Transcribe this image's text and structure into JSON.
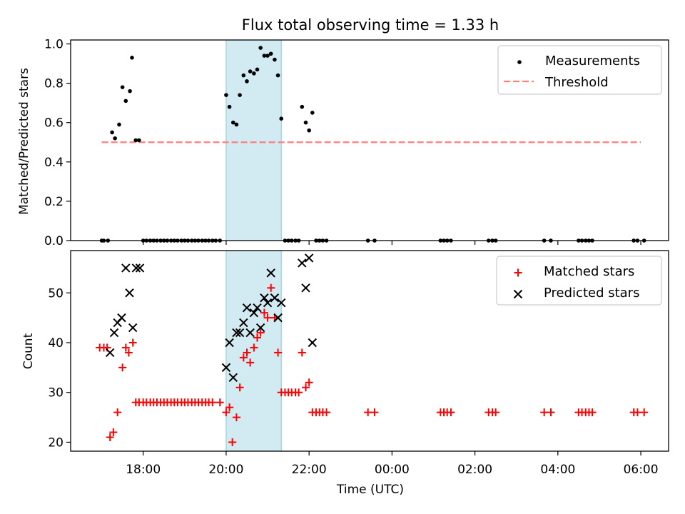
{
  "chart_data": [
    {
      "type": "scatter",
      "title": "Flux total observing time = 1.33 h",
      "xlabel": "",
      "ylabel": "Matched/Predicted stars",
      "ylim": [
        0,
        1.02
      ],
      "yticks": [
        "0.0",
        "0.2",
        "0.4",
        "0.6",
        "0.8",
        "1.0"
      ],
      "ytick_values": [
        0,
        0.2,
        0.4,
        0.6,
        0.8,
        1.0
      ],
      "shaded_region": {
        "x_start": 20.0,
        "x_end": 21.33,
        "color": "#add8e6"
      },
      "legend": {
        "placement": "top-right",
        "entries": [
          "Measurements",
          "Threshold"
        ]
      },
      "threshold": {
        "name": "Threshold",
        "y": 0.5,
        "x": [
          17.0,
          30.0
        ],
        "color": "#ff7f7f",
        "style": "dashed"
      },
      "series": [
        {
          "name": "Measurements",
          "marker": "dot",
          "color": "#000000",
          "points": [
            [
              17.0,
              0
            ],
            [
              17.05,
              0
            ],
            [
              17.15,
              0
            ],
            [
              17.25,
              0.55
            ],
            [
              17.32,
              0.52
            ],
            [
              17.42,
              0.59
            ],
            [
              17.5,
              0.78
            ],
            [
              17.58,
              0.71
            ],
            [
              17.68,
              0.76
            ],
            [
              17.73,
              0.93
            ],
            [
              17.82,
              0.51
            ],
            [
              17.9,
              0.51
            ],
            [
              18.0,
              0
            ],
            [
              18.08,
              0
            ],
            [
              18.17,
              0
            ],
            [
              18.25,
              0
            ],
            [
              18.33,
              0
            ],
            [
              18.42,
              0
            ],
            [
              18.5,
              0
            ],
            [
              18.58,
              0
            ],
            [
              18.67,
              0
            ],
            [
              18.75,
              0
            ],
            [
              18.83,
              0
            ],
            [
              18.92,
              0
            ],
            [
              19.0,
              0
            ],
            [
              19.08,
              0
            ],
            [
              19.17,
              0
            ],
            [
              19.25,
              0
            ],
            [
              19.33,
              0
            ],
            [
              19.42,
              0
            ],
            [
              19.5,
              0
            ],
            [
              19.58,
              0
            ],
            [
              19.67,
              0
            ],
            [
              19.75,
              0
            ],
            [
              19.85,
              0
            ],
            [
              20.0,
              0.74
            ],
            [
              20.08,
              0.68
            ],
            [
              20.17,
              0.6
            ],
            [
              20.25,
              0.59
            ],
            [
              20.33,
              0.74
            ],
            [
              20.42,
              0.84
            ],
            [
              20.5,
              0.81
            ],
            [
              20.58,
              0.86
            ],
            [
              20.67,
              0.85
            ],
            [
              20.75,
              0.87
            ],
            [
              20.83,
              0.98
            ],
            [
              20.92,
              0.94
            ],
            [
              21.0,
              0.94
            ],
            [
              21.08,
              0.95
            ],
            [
              21.17,
              0.92
            ],
            [
              21.25,
              0.84
            ],
            [
              21.33,
              0.62
            ],
            [
              21.42,
              0
            ],
            [
              21.5,
              0
            ],
            [
              21.58,
              0
            ],
            [
              21.67,
              0
            ],
            [
              21.75,
              0
            ],
            [
              21.83,
              0.68
            ],
            [
              21.92,
              0.6
            ],
            [
              22.0,
              0.56
            ],
            [
              22.08,
              0.65
            ],
            [
              22.17,
              0
            ],
            [
              22.25,
              0
            ],
            [
              22.33,
              0
            ],
            [
              22.42,
              0
            ],
            [
              23.42,
              0
            ],
            [
              23.58,
              0
            ],
            [
              25.17,
              0
            ],
            [
              25.25,
              0
            ],
            [
              25.33,
              0
            ],
            [
              25.42,
              0
            ],
            [
              26.33,
              0
            ],
            [
              26.42,
              0
            ],
            [
              26.5,
              0
            ],
            [
              27.67,
              0
            ],
            [
              27.83,
              0
            ],
            [
              28.5,
              0
            ],
            [
              28.58,
              0
            ],
            [
              28.67,
              0
            ],
            [
              28.75,
              0
            ],
            [
              28.83,
              0
            ],
            [
              29.83,
              0
            ],
            [
              29.92,
              0
            ],
            [
              30.08,
              0
            ]
          ]
        }
      ]
    },
    {
      "type": "scatter",
      "title": "",
      "xlabel": "Time (UTC)",
      "ylabel": "Count",
      "xlim": [
        16.25,
        30.67
      ],
      "ylim": [
        18.2,
        58.5
      ],
      "xticks": [
        "18:00",
        "20:00",
        "22:00",
        "00:00",
        "02:00",
        "04:00",
        "06:00"
      ],
      "xtick_values": [
        18,
        20,
        22,
        24,
        26,
        28,
        30
      ],
      "yticks": [
        "20",
        "30",
        "40",
        "50"
      ],
      "ytick_values": [
        20,
        30,
        40,
        50
      ],
      "shaded_region": {
        "x_start": 20.0,
        "x_end": 21.33,
        "color": "#add8e6"
      },
      "legend": {
        "placement": "top-right",
        "entries": [
          "Matched stars",
          "Predicted stars"
        ]
      },
      "series": [
        {
          "name": "Matched stars",
          "marker": "plus",
          "color": "#ff0000",
          "points": [
            [
              16.95,
              39
            ],
            [
              17.05,
              39
            ],
            [
              17.13,
              39
            ],
            [
              17.2,
              21
            ],
            [
              17.28,
              22
            ],
            [
              17.38,
              26
            ],
            [
              17.5,
              35
            ],
            [
              17.58,
              39
            ],
            [
              17.65,
              38
            ],
            [
              17.75,
              40
            ],
            [
              17.82,
              28
            ],
            [
              17.9,
              28
            ],
            [
              18.0,
              28
            ],
            [
              18.08,
              28
            ],
            [
              18.17,
              28
            ],
            [
              18.25,
              28
            ],
            [
              18.33,
              28
            ],
            [
              18.42,
              28
            ],
            [
              18.5,
              28
            ],
            [
              18.58,
              28
            ],
            [
              18.67,
              28
            ],
            [
              18.75,
              28
            ],
            [
              18.83,
              28
            ],
            [
              18.92,
              28
            ],
            [
              19.0,
              28
            ],
            [
              19.08,
              28
            ],
            [
              19.17,
              28
            ],
            [
              19.25,
              28
            ],
            [
              19.33,
              28
            ],
            [
              19.42,
              28
            ],
            [
              19.5,
              28
            ],
            [
              19.58,
              28
            ],
            [
              19.67,
              28
            ],
            [
              19.85,
              28
            ],
            [
              20.0,
              26
            ],
            [
              20.08,
              27
            ],
            [
              20.15,
              20
            ],
            [
              20.25,
              25
            ],
            [
              20.33,
              31
            ],
            [
              20.42,
              37
            ],
            [
              20.5,
              38
            ],
            [
              20.58,
              36
            ],
            [
              20.67,
              39
            ],
            [
              20.75,
              41
            ],
            [
              20.83,
              42
            ],
            [
              20.92,
              46
            ],
            [
              21.0,
              45
            ],
            [
              21.08,
              51
            ],
            [
              21.17,
              45
            ],
            [
              21.25,
              38
            ],
            [
              21.33,
              30
            ],
            [
              21.42,
              30
            ],
            [
              21.5,
              30
            ],
            [
              21.58,
              30
            ],
            [
              21.67,
              30
            ],
            [
              21.75,
              30
            ],
            [
              21.83,
              38
            ],
            [
              21.92,
              31
            ],
            [
              22.0,
              32
            ],
            [
              22.08,
              26
            ],
            [
              22.17,
              26
            ],
            [
              22.25,
              26
            ],
            [
              22.33,
              26
            ],
            [
              22.42,
              26
            ],
            [
              23.42,
              26
            ],
            [
              23.58,
              26
            ],
            [
              25.17,
              26
            ],
            [
              25.25,
              26
            ],
            [
              25.33,
              26
            ],
            [
              25.42,
              26
            ],
            [
              26.33,
              26
            ],
            [
              26.42,
              26
            ],
            [
              26.5,
              26
            ],
            [
              27.67,
              26
            ],
            [
              27.83,
              26
            ],
            [
              28.5,
              26
            ],
            [
              28.58,
              26
            ],
            [
              28.67,
              26
            ],
            [
              28.75,
              26
            ],
            [
              28.83,
              26
            ],
            [
              29.83,
              26
            ],
            [
              29.92,
              26
            ],
            [
              30.08,
              26
            ]
          ]
        },
        {
          "name": "Predicted stars",
          "marker": "x",
          "color": "#000000",
          "points": [
            [
              17.2,
              38
            ],
            [
              17.3,
              42
            ],
            [
              17.38,
              44
            ],
            [
              17.48,
              45
            ],
            [
              17.58,
              55
            ],
            [
              17.67,
              50
            ],
            [
              17.75,
              43
            ],
            [
              17.83,
              55
            ],
            [
              17.92,
              55
            ],
            [
              20.0,
              35
            ],
            [
              20.08,
              40
            ],
            [
              20.17,
              33
            ],
            [
              20.25,
              42
            ],
            [
              20.33,
              42
            ],
            [
              20.42,
              44
            ],
            [
              20.5,
              47
            ],
            [
              20.58,
              42
            ],
            [
              20.67,
              46
            ],
            [
              20.75,
              47
            ],
            [
              20.83,
              43
            ],
            [
              20.92,
              49
            ],
            [
              21.0,
              48
            ],
            [
              21.08,
              54
            ],
            [
              21.17,
              49
            ],
            [
              21.25,
              45
            ],
            [
              21.33,
              48
            ],
            [
              21.83,
              56
            ],
            [
              21.92,
              51
            ],
            [
              22.0,
              57
            ],
            [
              22.08,
              40
            ]
          ]
        }
      ]
    }
  ]
}
